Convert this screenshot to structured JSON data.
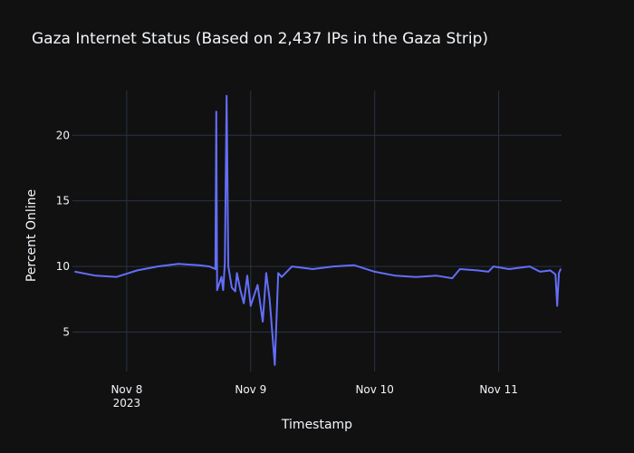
{
  "chart_data": {
    "type": "line",
    "title": "Gaza Internet Status (Based on 2,437 IPs in the Gaza Strip)",
    "xlabel": "Timestamp",
    "ylabel": "Percent Online",
    "x_ticks": [
      {
        "date": "2023-11-08T00:00",
        "label": "Nov 8",
        "sublabel": "2023"
      },
      {
        "date": "2023-11-09T00:00",
        "label": "Nov 9",
        "sublabel": ""
      },
      {
        "date": "2023-11-10T00:00",
        "label": "Nov 10",
        "sublabel": ""
      },
      {
        "date": "2023-11-11T00:00",
        "label": "Nov 11",
        "sublabel": ""
      }
    ],
    "y_ticks": [
      5,
      10,
      15,
      20
    ],
    "xlim": [
      "2023-11-07T13:30",
      "2023-11-11T12:10"
    ],
    "ylim": [
      2.0,
      23.4
    ],
    "grid": true,
    "colors": {
      "background": "#111111",
      "grid": "#283442",
      "line": "#636efa",
      "text": "#f2f5fa"
    },
    "series": [
      {
        "points": [
          [
            "2023-11-07T14:00",
            9.6
          ],
          [
            "2023-11-07T18:00",
            9.3
          ],
          [
            "2023-11-07T22:00",
            9.2
          ],
          [
            "2023-11-08T02:00",
            9.7
          ],
          [
            "2023-11-08T06:00",
            10.0
          ],
          [
            "2023-11-08T10:00",
            10.2
          ],
          [
            "2023-11-08T14:00",
            10.1
          ],
          [
            "2023-11-08T16:00",
            10.0
          ],
          [
            "2023-11-08T17:10",
            9.8
          ],
          [
            "2023-11-08T17:20",
            21.8
          ],
          [
            "2023-11-08T17:30",
            8.2
          ],
          [
            "2023-11-08T18:20",
            9.2
          ],
          [
            "2023-11-08T18:40",
            8.2
          ],
          [
            "2023-11-08T19:00",
            10.3
          ],
          [
            "2023-11-08T19:20",
            23.0
          ],
          [
            "2023-11-08T19:40",
            10.0
          ],
          [
            "2023-11-08T20:20",
            8.4
          ],
          [
            "2023-11-08T21:00",
            8.1
          ],
          [
            "2023-11-08T21:20",
            9.5
          ],
          [
            "2023-11-08T22:00",
            8.2
          ],
          [
            "2023-11-08T22:40",
            7.2
          ],
          [
            "2023-11-08T23:20",
            9.3
          ],
          [
            "2023-11-09T00:00",
            7.0
          ],
          [
            "2023-11-09T01:20",
            8.6
          ],
          [
            "2023-11-09T02:20",
            5.8
          ],
          [
            "2023-11-09T03:00",
            9.5
          ],
          [
            "2023-11-09T03:40",
            7.5
          ],
          [
            "2023-11-09T04:40",
            2.5
          ],
          [
            "2023-11-09T05:20",
            9.5
          ],
          [
            "2023-11-09T06:00",
            9.2
          ],
          [
            "2023-11-09T08:00",
            10.0
          ],
          [
            "2023-11-09T12:00",
            9.8
          ],
          [
            "2023-11-09T16:00",
            10.0
          ],
          [
            "2023-11-09T20:00",
            10.1
          ],
          [
            "2023-11-10T00:00",
            9.6
          ],
          [
            "2023-11-10T04:00",
            9.3
          ],
          [
            "2023-11-10T08:00",
            9.2
          ],
          [
            "2023-11-10T12:00",
            9.3
          ],
          [
            "2023-11-10T15:00",
            9.1
          ],
          [
            "2023-11-10T16:30",
            9.8
          ],
          [
            "2023-11-10T20:00",
            9.7
          ],
          [
            "2023-11-10T22:00",
            9.6
          ],
          [
            "2023-11-10T23:00",
            10.0
          ],
          [
            "2023-11-11T02:00",
            9.8
          ],
          [
            "2023-11-11T06:00",
            10.0
          ],
          [
            "2023-11-11T08:00",
            9.6
          ],
          [
            "2023-11-11T10:00",
            9.7
          ],
          [
            "2023-11-11T11:00",
            9.4
          ],
          [
            "2023-11-11T11:20",
            7.0
          ],
          [
            "2023-11-11T11:40",
            9.5
          ],
          [
            "2023-11-11T12:00",
            9.8
          ]
        ]
      }
    ]
  }
}
